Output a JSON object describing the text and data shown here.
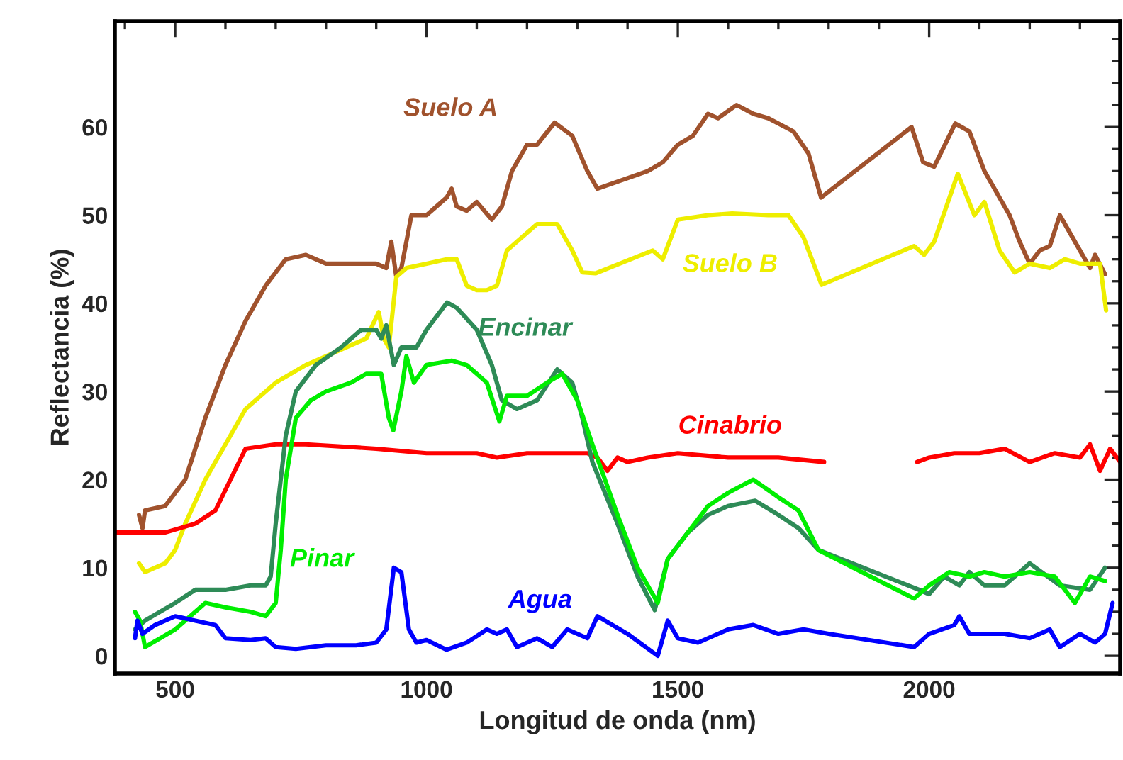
{
  "chart_data": {
    "type": "line",
    "xlabel": "Longitud de onda (nm)",
    "ylabel": "Reflectancia (%)",
    "xlim": [
      380,
      2380
    ],
    "ylim": [
      -2,
      72
    ],
    "xticks": [
      {
        "value": 400,
        "label": null
      },
      500,
      {
        "value": 600,
        "label": null
      },
      {
        "value": 700,
        "label": null
      },
      {
        "value": 800,
        "label": null
      },
      {
        "value": 900,
        "label": null
      },
      1000,
      {
        "value": 1100,
        "label": null
      },
      {
        "value": 1200,
        "label": null
      },
      {
        "value": 1300,
        "label": null
      },
      {
        "value": 1400,
        "label": null
      },
      1500,
      {
        "value": 1600,
        "label": null
      },
      {
        "value": 1700,
        "label": null
      },
      {
        "value": 1800,
        "label": null
      },
      {
        "value": 1900,
        "label": null
      },
      2000,
      {
        "value": 2100,
        "label": null
      },
      {
        "value": 2200,
        "label": null
      },
      {
        "value": 2300,
        "label": null
      }
    ],
    "yticks": [
      0,
      {
        "value": 2.5,
        "label": null
      },
      {
        "value": 5,
        "label": null
      },
      {
        "value": 7.5,
        "label": null
      },
      10,
      {
        "value": 12.5,
        "label": null
      },
      {
        "value": 15,
        "label": null
      },
      {
        "value": 17.5,
        "label": null
      },
      20,
      {
        "value": 22.5,
        "label": null
      },
      {
        "value": 25,
        "label": null
      },
      {
        "value": 27.5,
        "label": null
      },
      30,
      {
        "value": 32.5,
        "label": null
      },
      {
        "value": 35,
        "label": null
      },
      {
        "value": 37.5,
        "label": null
      },
      40,
      {
        "value": 42.5,
        "label": null
      },
      {
        "value": 45,
        "label": null
      },
      {
        "value": 47.5,
        "label": null
      },
      50,
      {
        "value": 52.5,
        "label": null
      },
      {
        "value": 55,
        "label": null
      },
      {
        "value": 57.5,
        "label": null
      },
      60,
      {
        "value": 62.5,
        "label": null
      },
      {
        "value": 65,
        "label": null
      },
      {
        "value": 67.5,
        "label": null
      },
      {
        "value": 70,
        "label": null
      }
    ],
    "grid": false,
    "legend": false,
    "marker": "none",
    "line_style": "solid",
    "series": [
      {
        "name": "Suelo A",
        "color": "#a0522d",
        "x": [
          428,
          435,
          440,
          480,
          520,
          560,
          600,
          640,
          680,
          720,
          760,
          800,
          850,
          900,
          920,
          930,
          940,
          950,
          970,
          1000,
          1020,
          1040,
          1050,
          1060,
          1080,
          1100,
          1130,
          1150,
          1170,
          1200,
          1220,
          1255,
          1290,
          1320,
          1340,
          1440,
          1470,
          1500,
          1530,
          1560,
          1580,
          1617,
          1650,
          1680,
          1730,
          1760,
          1785,
          1965,
          1988,
          2010,
          2052,
          2080,
          2110,
          2140,
          2160,
          2180,
          2200,
          2220,
          2240,
          2260,
          2280,
          2320,
          2330,
          2350
        ],
        "values": [
          16,
          14.5,
          16.5,
          17,
          20,
          27,
          33,
          38,
          42,
          45,
          45.5,
          44.5,
          44.5,
          44.5,
          44,
          47,
          43,
          44,
          50,
          50,
          51,
          52,
          53,
          51,
          50.5,
          51.5,
          49.5,
          51,
          55,
          58,
          58,
          60.5,
          59,
          55,
          53,
          55,
          56,
          58,
          59,
          61.5,
          61,
          62.5,
          61.5,
          61,
          59.5,
          57,
          52,
          60,
          56,
          55.5,
          60.4,
          59.5,
          55,
          52,
          50,
          47,
          44.5,
          46,
          46.5,
          50,
          48,
          44,
          45.5,
          43.3
        ]
      },
      {
        "name": "Suelo B",
        "color": "#eeee00",
        "x": [
          428,
          440,
          460,
          480,
          500,
          520,
          560,
          600,
          640,
          700,
          760,
          820,
          880,
          905,
          915,
          925,
          940,
          960,
          1000,
          1040,
          1060,
          1080,
          1100,
          1120,
          1140,
          1160,
          1180,
          1220,
          1260,
          1290,
          1310,
          1336,
          1450,
          1470,
          1500,
          1560,
          1608,
          1680,
          1720,
          1750,
          1786,
          1970,
          1990,
          2010,
          2057,
          2090,
          2110,
          2140,
          2170,
          2200,
          2240,
          2270,
          2300,
          2340,
          2352
        ],
        "values": [
          10.5,
          9.5,
          10,
          10.5,
          12,
          15,
          20,
          24,
          28,
          31,
          33,
          34.5,
          36,
          39,
          36,
          35,
          43,
          44,
          44.5,
          45,
          45,
          42,
          41.5,
          41.5,
          42,
          46,
          47,
          49,
          49,
          46,
          43.5,
          43.4,
          46,
          45,
          49.5,
          50,
          50.2,
          50,
          50,
          47.5,
          42.1,
          46.5,
          45.5,
          47,
          54.7,
          50,
          51.5,
          46,
          43.5,
          44.5,
          44,
          45,
          44.5,
          44.5,
          39.2
        ]
      },
      {
        "name": "Cinabrio",
        "color": "#ff0000",
        "x": [
          380,
          420,
          480,
          540,
          580,
          610,
          640,
          700,
          760,
          900,
          1000,
          1100,
          1140,
          1200,
          1320,
          1340,
          1360,
          1380,
          1400,
          1440,
          1500,
          1600,
          1700,
          1791,
          1880,
          1976,
          2000,
          2050,
          2100,
          2150,
          2200,
          2250,
          2300,
          2320,
          2340,
          2360,
          2380
        ],
        "values": [
          14,
          14,
          14,
          15,
          16.5,
          20,
          23.5,
          24,
          24,
          23.5,
          23,
          23,
          22.5,
          23,
          23,
          22.5,
          21,
          22.5,
          22,
          22.5,
          23,
          22.5,
          22.5,
          22,
          null,
          22,
          22.5,
          23,
          23,
          23.5,
          22,
          23,
          22.5,
          24,
          21,
          23.5,
          22
        ]
      },
      {
        "name": "Encinar",
        "color": "#2e8b57",
        "x": [
          420,
          440,
          470,
          500,
          540,
          600,
          650,
          680,
          690,
          700,
          720,
          740,
          780,
          830,
          870,
          900,
          910,
          920,
          935,
          950,
          980,
          1000,
          1041,
          1060,
          1100,
          1130,
          1150,
          1180,
          1220,
          1260,
          1290,
          1310,
          1330,
          1380,
          1420,
          1454,
          1480,
          1520,
          1560,
          1600,
          1654,
          1700,
          1740,
          1780,
          1980,
          2000,
          2030,
          2060,
          2080,
          2110,
          2150,
          2200,
          2260,
          2320,
          2350
        ],
        "values": [
          3,
          4,
          5,
          6,
          7.5,
          7.5,
          8,
          8,
          9,
          15,
          25,
          30,
          33,
          35,
          37,
          37,
          36,
          37.5,
          33,
          35,
          35,
          37,
          40.1,
          39.5,
          37,
          33,
          29,
          28,
          29,
          32.5,
          31,
          27,
          22,
          15,
          9,
          5.2,
          11,
          14,
          16,
          17,
          17.6,
          16,
          14.5,
          12,
          7.5,
          7,
          9,
          8,
          9.5,
          8,
          8,
          10.5,
          8,
          7.5,
          10
        ]
      },
      {
        "name": "Pinar",
        "color": "#00ee00",
        "x": [
          420,
          430,
          440,
          470,
          500,
          520,
          560,
          600,
          650,
          680,
          700,
          710,
          720,
          740,
          770,
          800,
          850,
          880,
          910,
          925,
          934,
          950,
          960,
          975,
          1000,
          1050,
          1080,
          1100,
          1120,
          1145,
          1160,
          1200,
          1240,
          1270,
          1300,
          1330,
          1380,
          1420,
          1460,
          1480,
          1520,
          1560,
          1600,
          1650,
          1700,
          1740,
          1780,
          1970,
          2000,
          2040,
          2080,
          2110,
          2150,
          2200,
          2250,
          2290,
          2320,
          2350
        ],
        "values": [
          5,
          4,
          1,
          2,
          3,
          4,
          6,
          5.5,
          5,
          4.5,
          6,
          12,
          20,
          27,
          29,
          30,
          31,
          32,
          32,
          27,
          25.6,
          30,
          34,
          31,
          33,
          33.5,
          33,
          32,
          31,
          26.6,
          29.5,
          29.5,
          31,
          32,
          29,
          24,
          16,
          10,
          6,
          11,
          14,
          17,
          18.5,
          20,
          18,
          16.5,
          12,
          6.5,
          8,
          9.5,
          9,
          9.5,
          9,
          9.5,
          9,
          6,
          9,
          8.5
        ]
      },
      {
        "name": "Agua",
        "color": "#0000ff",
        "x": [
          420,
          425,
          435,
          460,
          500,
          540,
          580,
          600,
          650,
          680,
          700,
          740,
          800,
          860,
          900,
          920,
          935,
          950,
          965,
          980,
          1000,
          1040,
          1080,
          1120,
          1140,
          1160,
          1180,
          1220,
          1250,
          1280,
          1300,
          1320,
          1340,
          1400,
          1460,
          1480,
          1500,
          1540,
          1600,
          1650,
          1700,
          1750,
          1800,
          1970,
          2000,
          2050,
          2060,
          2080,
          2150,
          2200,
          2240,
          2260,
          2300,
          2330,
          2350,
          2365
        ],
        "values": [
          2,
          4,
          2.5,
          3.5,
          4.5,
          4,
          3.5,
          2,
          1.8,
          2,
          1,
          0.8,
          1.2,
          1.2,
          1.5,
          3,
          10,
          9.5,
          3,
          1.5,
          1.8,
          0.7,
          1.5,
          3,
          2.5,
          3,
          1,
          2,
          1,
          3,
          2.5,
          2,
          4.5,
          2.5,
          0,
          4,
          2,
          1.5,
          3,
          3.5,
          2.5,
          3,
          2.5,
          1,
          2.5,
          3.5,
          4.5,
          2.5,
          2.5,
          2,
          3,
          1,
          2.5,
          1.5,
          2.5,
          6
        ]
      }
    ]
  }
}
